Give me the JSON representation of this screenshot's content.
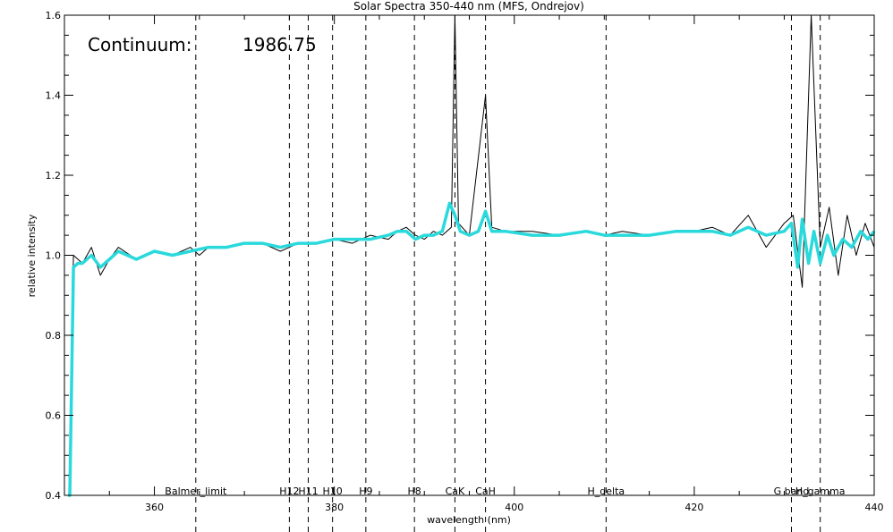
{
  "chart_data": {
    "type": "line",
    "title": "Solar Spectra 350-440 nm (MFS, Ondrejov)",
    "xlabel": "wavelength (nm)",
    "ylabel": "relative intensity",
    "xlim": [
      350,
      440
    ],
    "ylim": [
      0.4,
      1.6
    ],
    "x_ticks": [
      360,
      380,
      400,
      420,
      440
    ],
    "x_tick_labels": [
      "360",
      "380",
      "400",
      "420",
      "440"
    ],
    "y_ticks": [
      0.4,
      0.6,
      0.8,
      1.0,
      1.2,
      1.4,
      1.6
    ],
    "y_tick_labels": [
      "0.4",
      "0.6",
      "0.8",
      "1.0",
      "1.2",
      "1.4",
      "1.6"
    ],
    "grid": false,
    "annotation": {
      "label": "Continuum:",
      "value": "1986.75"
    },
    "spectral_lines": [
      {
        "label": "Balmer_limit",
        "wavelength": 364.6
      },
      {
        "label": "H12",
        "wavelength": 375.0
      },
      {
        "label": "H11",
        "wavelength": 377.1
      },
      {
        "label": "H10",
        "wavelength": 379.8
      },
      {
        "label": "H9",
        "wavelength": 383.5
      },
      {
        "label": "H8",
        "wavelength": 388.9
      },
      {
        "label": "CaK",
        "wavelength": 393.4
      },
      {
        "label": "CaH",
        "wavelength": 396.8
      },
      {
        "label": "H_delta",
        "wavelength": 410.2
      },
      {
        "label": "G band",
        "wavelength": 430.8
      },
      {
        "label": "H_gamma",
        "wavelength": 434.0
      }
    ],
    "series": [
      {
        "color": "#000000",
        "style": "observed (noisy)",
        "x": [
          350.5,
          351,
          352,
          353,
          354,
          355,
          356,
          358,
          360,
          362,
          364,
          365,
          366,
          368,
          370,
          372,
          374,
          375,
          376,
          378,
          380,
          382,
          384,
          386,
          387,
          388,
          389,
          390,
          391,
          392,
          393,
          393.4,
          393.8,
          395,
          396.8,
          397.5,
          399,
          402,
          405,
          408,
          410,
          412,
          415,
          418,
          420,
          422,
          424,
          426,
          428,
          430,
          431,
          432,
          433,
          434,
          435,
          436,
          437,
          438,
          439,
          440
        ],
        "y": [
          0.4,
          1.0,
          0.98,
          1.02,
          0.95,
          0.99,
          1.02,
          0.99,
          1.01,
          1.0,
          1.02,
          1.0,
          1.02,
          1.02,
          1.03,
          1.03,
          1.01,
          1.02,
          1.03,
          1.03,
          1.04,
          1.03,
          1.05,
          1.04,
          1.06,
          1.07,
          1.05,
          1.04,
          1.06,
          1.05,
          1.07,
          1.6,
          1.08,
          1.05,
          1.4,
          1.07,
          1.06,
          1.06,
          1.05,
          1.06,
          1.05,
          1.06,
          1.05,
          1.06,
          1.06,
          1.07,
          1.05,
          1.1,
          1.02,
          1.08,
          1.1,
          0.92,
          1.6,
          1.02,
          1.12,
          0.95,
          1.1,
          1.0,
          1.08,
          1.02
        ]
      },
      {
        "color": "#2ad9dc",
        "style": "smoothed",
        "x": [
          350.4,
          350.6,
          351,
          351.5,
          352,
          353,
          354,
          355,
          356,
          357,
          358,
          360,
          362,
          364,
          366,
          368,
          370,
          372,
          374,
          376,
          378,
          380,
          382,
          384,
          386,
          387,
          388,
          389,
          390,
          391,
          392,
          392.8,
          393.4,
          394,
          395,
          396,
          396.8,
          397.5,
          399,
          402,
          405,
          408,
          410,
          412,
          415,
          418,
          420,
          422,
          424,
          426,
          428,
          430,
          430.8,
          431.5,
          432,
          432.7,
          433.3,
          434,
          434.8,
          435.5,
          436.5,
          437.5,
          438.5,
          439.3,
          440
        ],
        "y": [
          0.4,
          0.4,
          0.97,
          0.98,
          0.98,
          1.0,
          0.97,
          0.99,
          1.01,
          1.0,
          0.99,
          1.01,
          1.0,
          1.01,
          1.02,
          1.02,
          1.03,
          1.03,
          1.02,
          1.03,
          1.03,
          1.04,
          1.04,
          1.04,
          1.05,
          1.06,
          1.06,
          1.04,
          1.05,
          1.05,
          1.06,
          1.13,
          1.1,
          1.06,
          1.05,
          1.06,
          1.11,
          1.06,
          1.06,
          1.05,
          1.05,
          1.06,
          1.05,
          1.05,
          1.05,
          1.06,
          1.06,
          1.06,
          1.05,
          1.07,
          1.05,
          1.06,
          1.08,
          0.97,
          1.09,
          0.98,
          1.06,
          0.98,
          1.05,
          1.0,
          1.04,
          1.02,
          1.06,
          1.04,
          1.06
        ]
      }
    ]
  }
}
